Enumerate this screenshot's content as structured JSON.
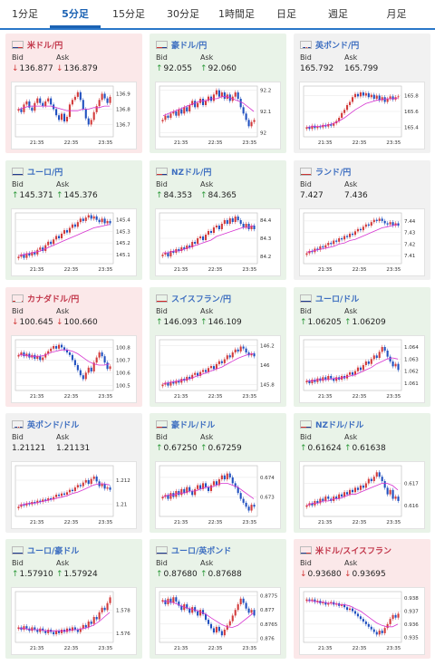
{
  "tabs": [
    {
      "label": "1分足",
      "active": false
    },
    {
      "label": "5分足",
      "active": true
    },
    {
      "label": "15分足",
      "active": false
    },
    {
      "label": "30分足",
      "active": false
    },
    {
      "label": "1時間足",
      "active": false
    },
    {
      "label": "日足",
      "active": false
    },
    {
      "label": "週足",
      "active": false
    },
    {
      "label": "月足",
      "active": false
    }
  ],
  "bid_label": "Bid",
  "ask_label": "Ask",
  "time_labels": [
    "21:35",
    "22:35",
    "23:35"
  ],
  "cards": [
    {
      "name": "米ドル/円",
      "flag": "us",
      "trend": "down",
      "bid": "136.877",
      "ask": "136.879",
      "bid_dir": "down",
      "ask_dir": "down",
      "yticks": [
        "136.9",
        "136.8",
        "136.7"
      ],
      "ylim": [
        136.62,
        136.95
      ],
      "closes": [
        136.8,
        136.78,
        136.83,
        136.85,
        136.81,
        136.79,
        136.84,
        136.87,
        136.84,
        136.82,
        136.85,
        136.87,
        136.83,
        136.8,
        136.76,
        136.73,
        136.77,
        136.72,
        136.75,
        136.83,
        136.86,
        136.88,
        136.91,
        136.86,
        136.8,
        136.74,
        136.7,
        136.73,
        136.78,
        136.82,
        136.86,
        136.9,
        136.87,
        136.84,
        136.88
      ],
      "ma": [
        136.8,
        136.81,
        136.82,
        136.82,
        136.82,
        136.82,
        136.82,
        136.81,
        136.8,
        136.79,
        136.79,
        136.79,
        136.8,
        136.8,
        136.81,
        136.81,
        136.82,
        136.82
      ]
    },
    {
      "name": "豪ドル/円",
      "flag": "au",
      "trend": "up",
      "bid": "92.055",
      "ask": "92.060",
      "bid_dir": "up",
      "ask_dir": "up",
      "yticks": [
        "92.2",
        "92.1",
        "92"
      ],
      "ylim": [
        91.98,
        92.22
      ],
      "closes": [
        92.06,
        92.08,
        92.07,
        92.09,
        92.1,
        92.08,
        92.11,
        92.09,
        92.12,
        92.1,
        92.13,
        92.15,
        92.12,
        92.14,
        92.16,
        92.13,
        92.15,
        92.17,
        92.15,
        92.18,
        92.2,
        92.17,
        92.19,
        92.16,
        92.18,
        92.15,
        92.17,
        92.19,
        92.16,
        92.12,
        92.09,
        92.06,
        92.03,
        92.05,
        92.06
      ],
      "ma": [
        92.08,
        92.09,
        92.1,
        92.11,
        92.12,
        92.13,
        92.14,
        92.15,
        92.15,
        92.16,
        92.16,
        92.17,
        92.17,
        92.16,
        92.15,
        92.14,
        92.12,
        92.1
      ]
    },
    {
      "name": "英ポンド/円",
      "flag": "gb",
      "trend": "flat",
      "bid": "165.792",
      "ask": "165.799",
      "bid_dir": "none",
      "ask_dir": "none",
      "yticks": [
        "165.8",
        "165.6",
        "165.4"
      ],
      "ylim": [
        165.28,
        165.92
      ],
      "closes": [
        165.4,
        165.38,
        165.42,
        165.39,
        165.41,
        165.4,
        165.43,
        165.41,
        165.44,
        165.42,
        165.45,
        165.48,
        165.52,
        165.58,
        165.62,
        165.68,
        165.72,
        165.78,
        165.82,
        165.79,
        165.84,
        165.8,
        165.83,
        165.78,
        165.81,
        165.76,
        165.8,
        165.74,
        165.78,
        165.72,
        165.76,
        165.79,
        165.75,
        165.78,
        165.79
      ],
      "ma": [
        165.4,
        165.41,
        165.41,
        165.42,
        165.43,
        165.45,
        165.48,
        165.52,
        165.57,
        165.62,
        165.66,
        165.7,
        165.72,
        165.74,
        165.75,
        165.76,
        165.76,
        165.77
      ]
    },
    {
      "name": "ユーロ/円",
      "flag": "eu",
      "trend": "up",
      "bid": "145.371",
      "ask": "145.376",
      "bid_dir": "up",
      "ask_dir": "up",
      "yticks": [
        "145.4",
        "145.3",
        "145.2",
        "145.1"
      ],
      "ylim": [
        145.02,
        145.46
      ],
      "closes": [
        145.08,
        145.1,
        145.07,
        145.11,
        145.09,
        145.12,
        145.1,
        145.14,
        145.16,
        145.13,
        145.18,
        145.21,
        145.19,
        145.23,
        145.26,
        145.24,
        145.28,
        145.31,
        145.29,
        145.33,
        145.36,
        145.34,
        145.38,
        145.41,
        145.39,
        145.42,
        145.44,
        145.41,
        145.43,
        145.4,
        145.38,
        145.41,
        145.37,
        145.39,
        145.37
      ],
      "ma": [
        145.09,
        145.1,
        145.11,
        145.12,
        145.13,
        145.15,
        145.17,
        145.19,
        145.21,
        145.23,
        145.25,
        145.27,
        145.29,
        145.31,
        145.33,
        145.34,
        145.35,
        145.36
      ]
    },
    {
      "name": "NZドル/円",
      "flag": "nz",
      "trend": "up",
      "bid": "84.353",
      "ask": "84.365",
      "bid_dir": "up",
      "ask_dir": "up",
      "yticks": [
        "84.4",
        "84.3",
        "84.2"
      ],
      "ylim": [
        84.16,
        84.44
      ],
      "closes": [
        84.21,
        84.22,
        84.2,
        84.23,
        84.22,
        84.24,
        84.23,
        84.25,
        84.24,
        84.26,
        84.25,
        84.28,
        84.27,
        84.3,
        84.31,
        84.29,
        84.32,
        84.34,
        84.33,
        84.36,
        84.37,
        84.35,
        84.38,
        84.4,
        84.38,
        84.41,
        84.39,
        84.42,
        84.4,
        84.38,
        84.36,
        84.38,
        84.35,
        84.37,
        84.35
      ],
      "ma": [
        84.22,
        84.22,
        84.23,
        84.23,
        84.24,
        84.25,
        84.26,
        84.27,
        84.28,
        84.29,
        84.31,
        84.32,
        84.33,
        84.34,
        84.35,
        84.36,
        84.36,
        84.37
      ]
    },
    {
      "name": "ランド/円",
      "flag": "za",
      "trend": "flat",
      "bid": "7.427",
      "ask": "7.436",
      "bid_dir": "none",
      "ask_dir": "none",
      "yticks": [
        "7.44",
        "7.43",
        "7.42",
        "7.41"
      ],
      "ylim": [
        7.403,
        7.447
      ],
      "closes": [
        7.412,
        7.414,
        7.413,
        7.416,
        7.415,
        7.418,
        7.417,
        7.419,
        7.421,
        7.42,
        7.423,
        7.422,
        7.425,
        7.424,
        7.427,
        7.426,
        7.429,
        7.428,
        7.431,
        7.433,
        7.432,
        7.435,
        7.437,
        7.436,
        7.439,
        7.441,
        7.44,
        7.442,
        7.44,
        7.438,
        7.437,
        7.439,
        7.436,
        7.438,
        7.436
      ],
      "ma": [
        7.413,
        7.414,
        7.415,
        7.416,
        7.417,
        7.418,
        7.42,
        7.421,
        7.423,
        7.424,
        7.426,
        7.428,
        7.43,
        7.432,
        7.434,
        7.435,
        7.436,
        7.437
      ]
    },
    {
      "name": "カナダドル/円",
      "flag": "ca",
      "trend": "down",
      "bid": "100.645",
      "ask": "100.660",
      "bid_dir": "down",
      "ask_dir": "down",
      "yticks": [
        "100.8",
        "100.7",
        "100.6",
        "100.5"
      ],
      "ylim": [
        100.46,
        100.86
      ],
      "closes": [
        100.74,
        100.76,
        100.73,
        100.75,
        100.72,
        100.74,
        100.71,
        100.73,
        100.7,
        100.72,
        100.75,
        100.77,
        100.79,
        100.81,
        100.79,
        100.82,
        100.8,
        100.78,
        100.76,
        100.74,
        100.7,
        100.66,
        100.62,
        100.58,
        100.55,
        100.6,
        100.64,
        100.61,
        100.68,
        100.72,
        100.76,
        100.73,
        100.68,
        100.63,
        100.65
      ],
      "ma": [
        100.74,
        100.74,
        100.73,
        100.73,
        100.73,
        100.74,
        100.76,
        100.77,
        100.78,
        100.78,
        100.77,
        100.75,
        100.72,
        100.69,
        100.67,
        100.66,
        100.66,
        100.67
      ]
    },
    {
      "name": "スイスフラン/円",
      "flag": "ch",
      "trend": "up",
      "bid": "146.093",
      "ask": "146.109",
      "bid_dir": "up",
      "ask_dir": "up",
      "yticks": [
        "146.2",
        "146",
        "145.8"
      ],
      "ylim": [
        145.74,
        146.26
      ],
      "closes": [
        145.8,
        145.82,
        145.79,
        145.83,
        145.81,
        145.84,
        145.82,
        145.86,
        145.84,
        145.88,
        145.86,
        145.9,
        145.92,
        145.89,
        145.93,
        145.95,
        145.93,
        145.97,
        145.99,
        145.96,
        146.01,
        146.04,
        146.02,
        146.06,
        146.1,
        146.08,
        146.13,
        146.16,
        146.14,
        146.19,
        146.17,
        146.13,
        146.1,
        146.12,
        146.09
      ],
      "ma": [
        145.81,
        145.82,
        145.83,
        145.84,
        145.85,
        145.86,
        145.88,
        145.9,
        145.92,
        145.94,
        145.96,
        145.98,
        146.01,
        146.04,
        146.07,
        146.09,
        146.11,
        146.12
      ]
    },
    {
      "name": "ユーロ/ドル",
      "flag": "eu-us",
      "trend": "up",
      "bid": "1.06205",
      "ask": "1.06209",
      "bid_dir": "up",
      "ask_dir": "up",
      "yticks": [
        "1.064",
        "1.063",
        "1.062",
        "1.061"
      ],
      "ylim": [
        1.0604,
        1.0646
      ],
      "closes": [
        1.0612,
        1.061,
        1.0613,
        1.0611,
        1.0614,
        1.0612,
        1.0615,
        1.0613,
        1.0616,
        1.0614,
        1.0612,
        1.0615,
        1.0613,
        1.0616,
        1.0614,
        1.0617,
        1.0619,
        1.0617,
        1.062,
        1.0623,
        1.0621,
        1.0625,
        1.0628,
        1.0626,
        1.063,
        1.0633,
        1.0631,
        1.0636,
        1.064,
        1.0637,
        1.0632,
        1.0628,
        1.0624,
        1.0626,
        1.0621
      ],
      "ma": [
        1.0612,
        1.0612,
        1.0613,
        1.0613,
        1.0613,
        1.0614,
        1.0614,
        1.0615,
        1.0616,
        1.0617,
        1.0619,
        1.0621,
        1.0623,
        1.0626,
        1.0628,
        1.063,
        1.0631,
        1.063
      ]
    },
    {
      "name": "英ポンド/ドル",
      "flag": "gb-us",
      "trend": "flat",
      "bid": "1.21121",
      "ask": "1.21131",
      "bid_dir": "none",
      "ask_dir": "none",
      "yticks": [
        "1.212",
        "1.21"
      ],
      "ylim": [
        1.209,
        1.2132
      ],
      "closes": [
        1.2098,
        1.21,
        1.2099,
        1.2101,
        1.21,
        1.2102,
        1.2101,
        1.2103,
        1.2102,
        1.2104,
        1.2103,
        1.2105,
        1.2104,
        1.2106,
        1.2108,
        1.2107,
        1.2109,
        1.2108,
        1.211,
        1.2112,
        1.2111,
        1.2114,
        1.2116,
        1.2115,
        1.2118,
        1.212,
        1.2117,
        1.2121,
        1.2123,
        1.2119,
        1.2115,
        1.2117,
        1.2113,
        1.2114,
        1.2112
      ],
      "ma": [
        1.2099,
        1.21,
        1.2101,
        1.2101,
        1.2102,
        1.2103,
        1.2104,
        1.2105,
        1.2106,
        1.2107,
        1.2109,
        1.211,
        1.2112,
        1.2114,
        1.2116,
        1.2117,
        1.2117,
        1.2116
      ]
    },
    {
      "name": "豪ドル/ドル",
      "flag": "au-us",
      "trend": "up",
      "bid": "0.67250",
      "ask": "0.67259",
      "bid_dir": "up",
      "ask_dir": "up",
      "yticks": [
        "0.674",
        "0.673"
      ],
      "ylim": [
        0.672,
        0.6746
      ],
      "closes": [
        0.673,
        0.6731,
        0.6729,
        0.6732,
        0.673,
        0.6733,
        0.6731,
        0.6734,
        0.6732,
        0.6735,
        0.6733,
        0.6731,
        0.6734,
        0.6736,
        0.6734,
        0.6737,
        0.6735,
        0.6733,
        0.6736,
        0.6738,
        0.6736,
        0.6739,
        0.6741,
        0.6739,
        0.6742,
        0.674,
        0.6737,
        0.6735,
        0.6732,
        0.6729,
        0.6727,
        0.6725,
        0.6723,
        0.6726,
        0.6725
      ],
      "ma": [
        0.673,
        0.6731,
        0.6731,
        0.6732,
        0.6732,
        0.6733,
        0.6733,
        0.6734,
        0.6735,
        0.6735,
        0.6736,
        0.6737,
        0.6737,
        0.6736,
        0.6735,
        0.6733,
        0.6731,
        0.6729
      ]
    },
    {
      "name": "NZドル/ドル",
      "flag": "nz-us",
      "trend": "up",
      "bid": "0.61624",
      "ask": "0.61638",
      "bid_dir": "up",
      "ask_dir": "up",
      "yticks": [
        "0.617",
        "0.616"
      ],
      "ylim": [
        0.6155,
        0.6178
      ],
      "closes": [
        0.616,
        0.6161,
        0.616,
        0.6162,
        0.6161,
        0.6163,
        0.6162,
        0.6164,
        0.6163,
        0.6162,
        0.6164,
        0.6163,
        0.6165,
        0.6164,
        0.6166,
        0.6165,
        0.6167,
        0.6166,
        0.6168,
        0.6167,
        0.6169,
        0.6168,
        0.617,
        0.6172,
        0.6171,
        0.6173,
        0.6175,
        0.6173,
        0.6171,
        0.6168,
        0.6165,
        0.6167,
        0.6163,
        0.6164,
        0.6162
      ],
      "ma": [
        0.616,
        0.6161,
        0.6161,
        0.6162,
        0.6162,
        0.6163,
        0.6163,
        0.6164,
        0.6165,
        0.6165,
        0.6166,
        0.6167,
        0.6168,
        0.6169,
        0.617,
        0.617,
        0.6169,
        0.6167
      ]
    },
    {
      "name": "ユーロ/豪ドル",
      "flag": "eu-au",
      "trend": "up",
      "bid": "1.57910",
      "ask": "1.57924",
      "bid_dir": "up",
      "ask_dir": "up",
      "yticks": [
        "1.578",
        "1.576"
      ],
      "ylim": [
        1.5752,
        1.5796
      ],
      "closes": [
        1.5765,
        1.5763,
        1.5766,
        1.5764,
        1.5762,
        1.5765,
        1.5763,
        1.5761,
        1.5764,
        1.5762,
        1.576,
        1.5763,
        1.5761,
        1.5759,
        1.5762,
        1.576,
        1.5763,
        1.5761,
        1.5764,
        1.5762,
        1.5765,
        1.5763,
        1.5761,
        1.5764,
        1.5767,
        1.5765,
        1.577,
        1.5768,
        1.5774,
        1.5772,
        1.5778,
        1.5782,
        1.578,
        1.5786,
        1.5791
      ],
      "ma": [
        1.5764,
        1.5764,
        1.5763,
        1.5763,
        1.5763,
        1.5762,
        1.5762,
        1.5762,
        1.5762,
        1.5762,
        1.5763,
        1.5763,
        1.5764,
        1.5765,
        1.5767,
        1.577,
        1.5774,
        1.5778
      ]
    },
    {
      "name": "ユーロ/英ポンド",
      "flag": "eu-gb",
      "trend": "up",
      "bid": "0.87680",
      "ask": "0.87688",
      "bid_dir": "up",
      "ask_dir": "up",
      "yticks": [
        "0.8775",
        "0.877",
        "0.8765",
        "0.876"
      ],
      "ylim": [
        0.87585,
        0.87765
      ],
      "closes": [
        0.87735,
        0.8772,
        0.8774,
        0.87725,
        0.87745,
        0.8773,
        0.87715,
        0.877,
        0.8772,
        0.87705,
        0.8769,
        0.8771,
        0.87695,
        0.8768,
        0.877,
        0.87685,
        0.87665,
        0.8765,
        0.87635,
        0.8762,
        0.8764,
        0.87625,
        0.8761,
        0.8763,
        0.87645,
        0.8766,
        0.8768,
        0.877,
        0.8772,
        0.8774,
        0.87725,
        0.87705,
        0.8769,
        0.877,
        0.8768
      ],
      "ma": [
        0.8773,
        0.8773,
        0.87725,
        0.87718,
        0.8771,
        0.87705,
        0.877,
        0.87693,
        0.87685,
        0.87672,
        0.8766,
        0.87648,
        0.8764,
        0.87638,
        0.87645,
        0.8766,
        0.87675,
        0.8769
      ]
    },
    {
      "name": "米ドル/スイスフラン",
      "flag": "us-ch",
      "trend": "down",
      "bid": "0.93680",
      "ask": "0.93695",
      "bid_dir": "down",
      "ask_dir": "down",
      "yticks": [
        "0.938",
        "0.937",
        "0.936",
        "0.935"
      ],
      "ylim": [
        0.9346,
        0.9385
      ],
      "closes": [
        0.9379,
        0.9378,
        0.9379,
        0.9377,
        0.9378,
        0.9376,
        0.9377,
        0.9375,
        0.9376,
        0.9377,
        0.9375,
        0.9376,
        0.9374,
        0.9375,
        0.9373,
        0.9371,
        0.9372,
        0.937,
        0.9368,
        0.9366,
        0.9364,
        0.9362,
        0.936,
        0.9358,
        0.9356,
        0.9354,
        0.9352,
        0.9355,
        0.9353,
        0.9357,
        0.936,
        0.9364,
        0.9367,
        0.9365,
        0.9368
      ],
      "ma": [
        0.9378,
        0.9378,
        0.9377,
        0.9377,
        0.9376,
        0.9376,
        0.9375,
        0.9375,
        0.9374,
        0.9372,
        0.937,
        0.9367,
        0.9364,
        0.9361,
        0.9359,
        0.9358,
        0.9358,
        0.936
      ]
    }
  ]
}
